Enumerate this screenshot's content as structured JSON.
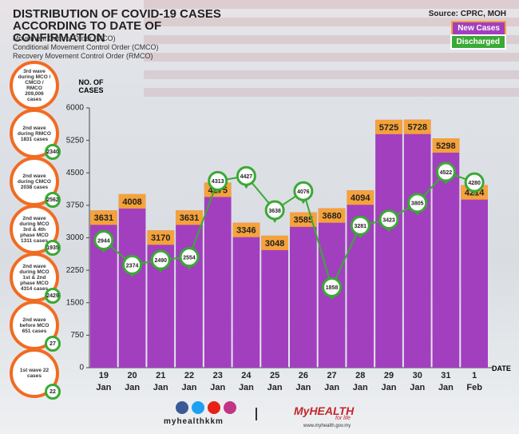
{
  "chart_data": {
    "type": "bar",
    "title": "DISTRIBUTION OF COVID-19 CASES ACCORDING TO DATE OF CONFIRMATION",
    "subtitle": [
      "Movement Control Order (MCO)",
      "Conditional Movement Control Order (CMCO)",
      "Recovery Movement Control Order (RMCO)"
    ],
    "source": "Source: CPRC, MOH",
    "y_label": "NO. OF CASES",
    "x_label": "DATE",
    "categories": [
      "19\nJan",
      "20\nJan",
      "21\nJan",
      "22\nJan",
      "23\nJan",
      "24\nJan",
      "25\nJan",
      "26\nJan",
      "27\nJan",
      "28\nJan",
      "29\nJan",
      "30\nJan",
      "31\nJan",
      "1\nFeb"
    ],
    "series": [
      {
        "name": "New Cases",
        "color": "#a23fbf",
        "values": [
          3631,
          4008,
          3170,
          3631,
          4275,
          3346,
          3048,
          3585,
          3680,
          4094,
          5725,
          5728,
          5298,
          4214
        ]
      },
      {
        "name": "Discharged",
        "color": "#3aa935",
        "type": "line",
        "values": [
          2944,
          2374,
          2490,
          2554,
          4313,
          4427,
          3638,
          4076,
          1858,
          3281,
          3423,
          3805,
          4522,
          4280
        ]
      }
    ],
    "ylim": [
      0,
      6000
    ],
    "yticks": [
      0,
      750,
      1500,
      2250,
      3000,
      3750,
      4500,
      5250,
      6000
    ],
    "grid": false
  },
  "sidebar": [
    {
      "label": "3rd wave during MCO / CMCO / RMCO 209,006 cases"
    },
    {
      "label": "2nd wave during RMCO 1831 cases",
      "discharged": 2340
    },
    {
      "label": "2nd wave during CMCO 2038 cases",
      "discharged": 2562
    },
    {
      "label": "2nd wave during MCO 3rd & 4th phase MCO 1311 cases",
      "discharged": 1935
    },
    {
      "label": "2nd wave during MCO 1st & 2nd phase MCO 4314 cases",
      "discharged": 2429
    },
    {
      "label": "2nd wave before MCO 651 cases",
      "discharged": 27
    },
    {
      "label": "1st wave 22 cases",
      "discharged": 22
    }
  ],
  "footer": {
    "social": "myhealthkkm",
    "brand": "MyHEALTH",
    "tagline": "for life",
    "url": "www.myhealth.gov.my"
  }
}
